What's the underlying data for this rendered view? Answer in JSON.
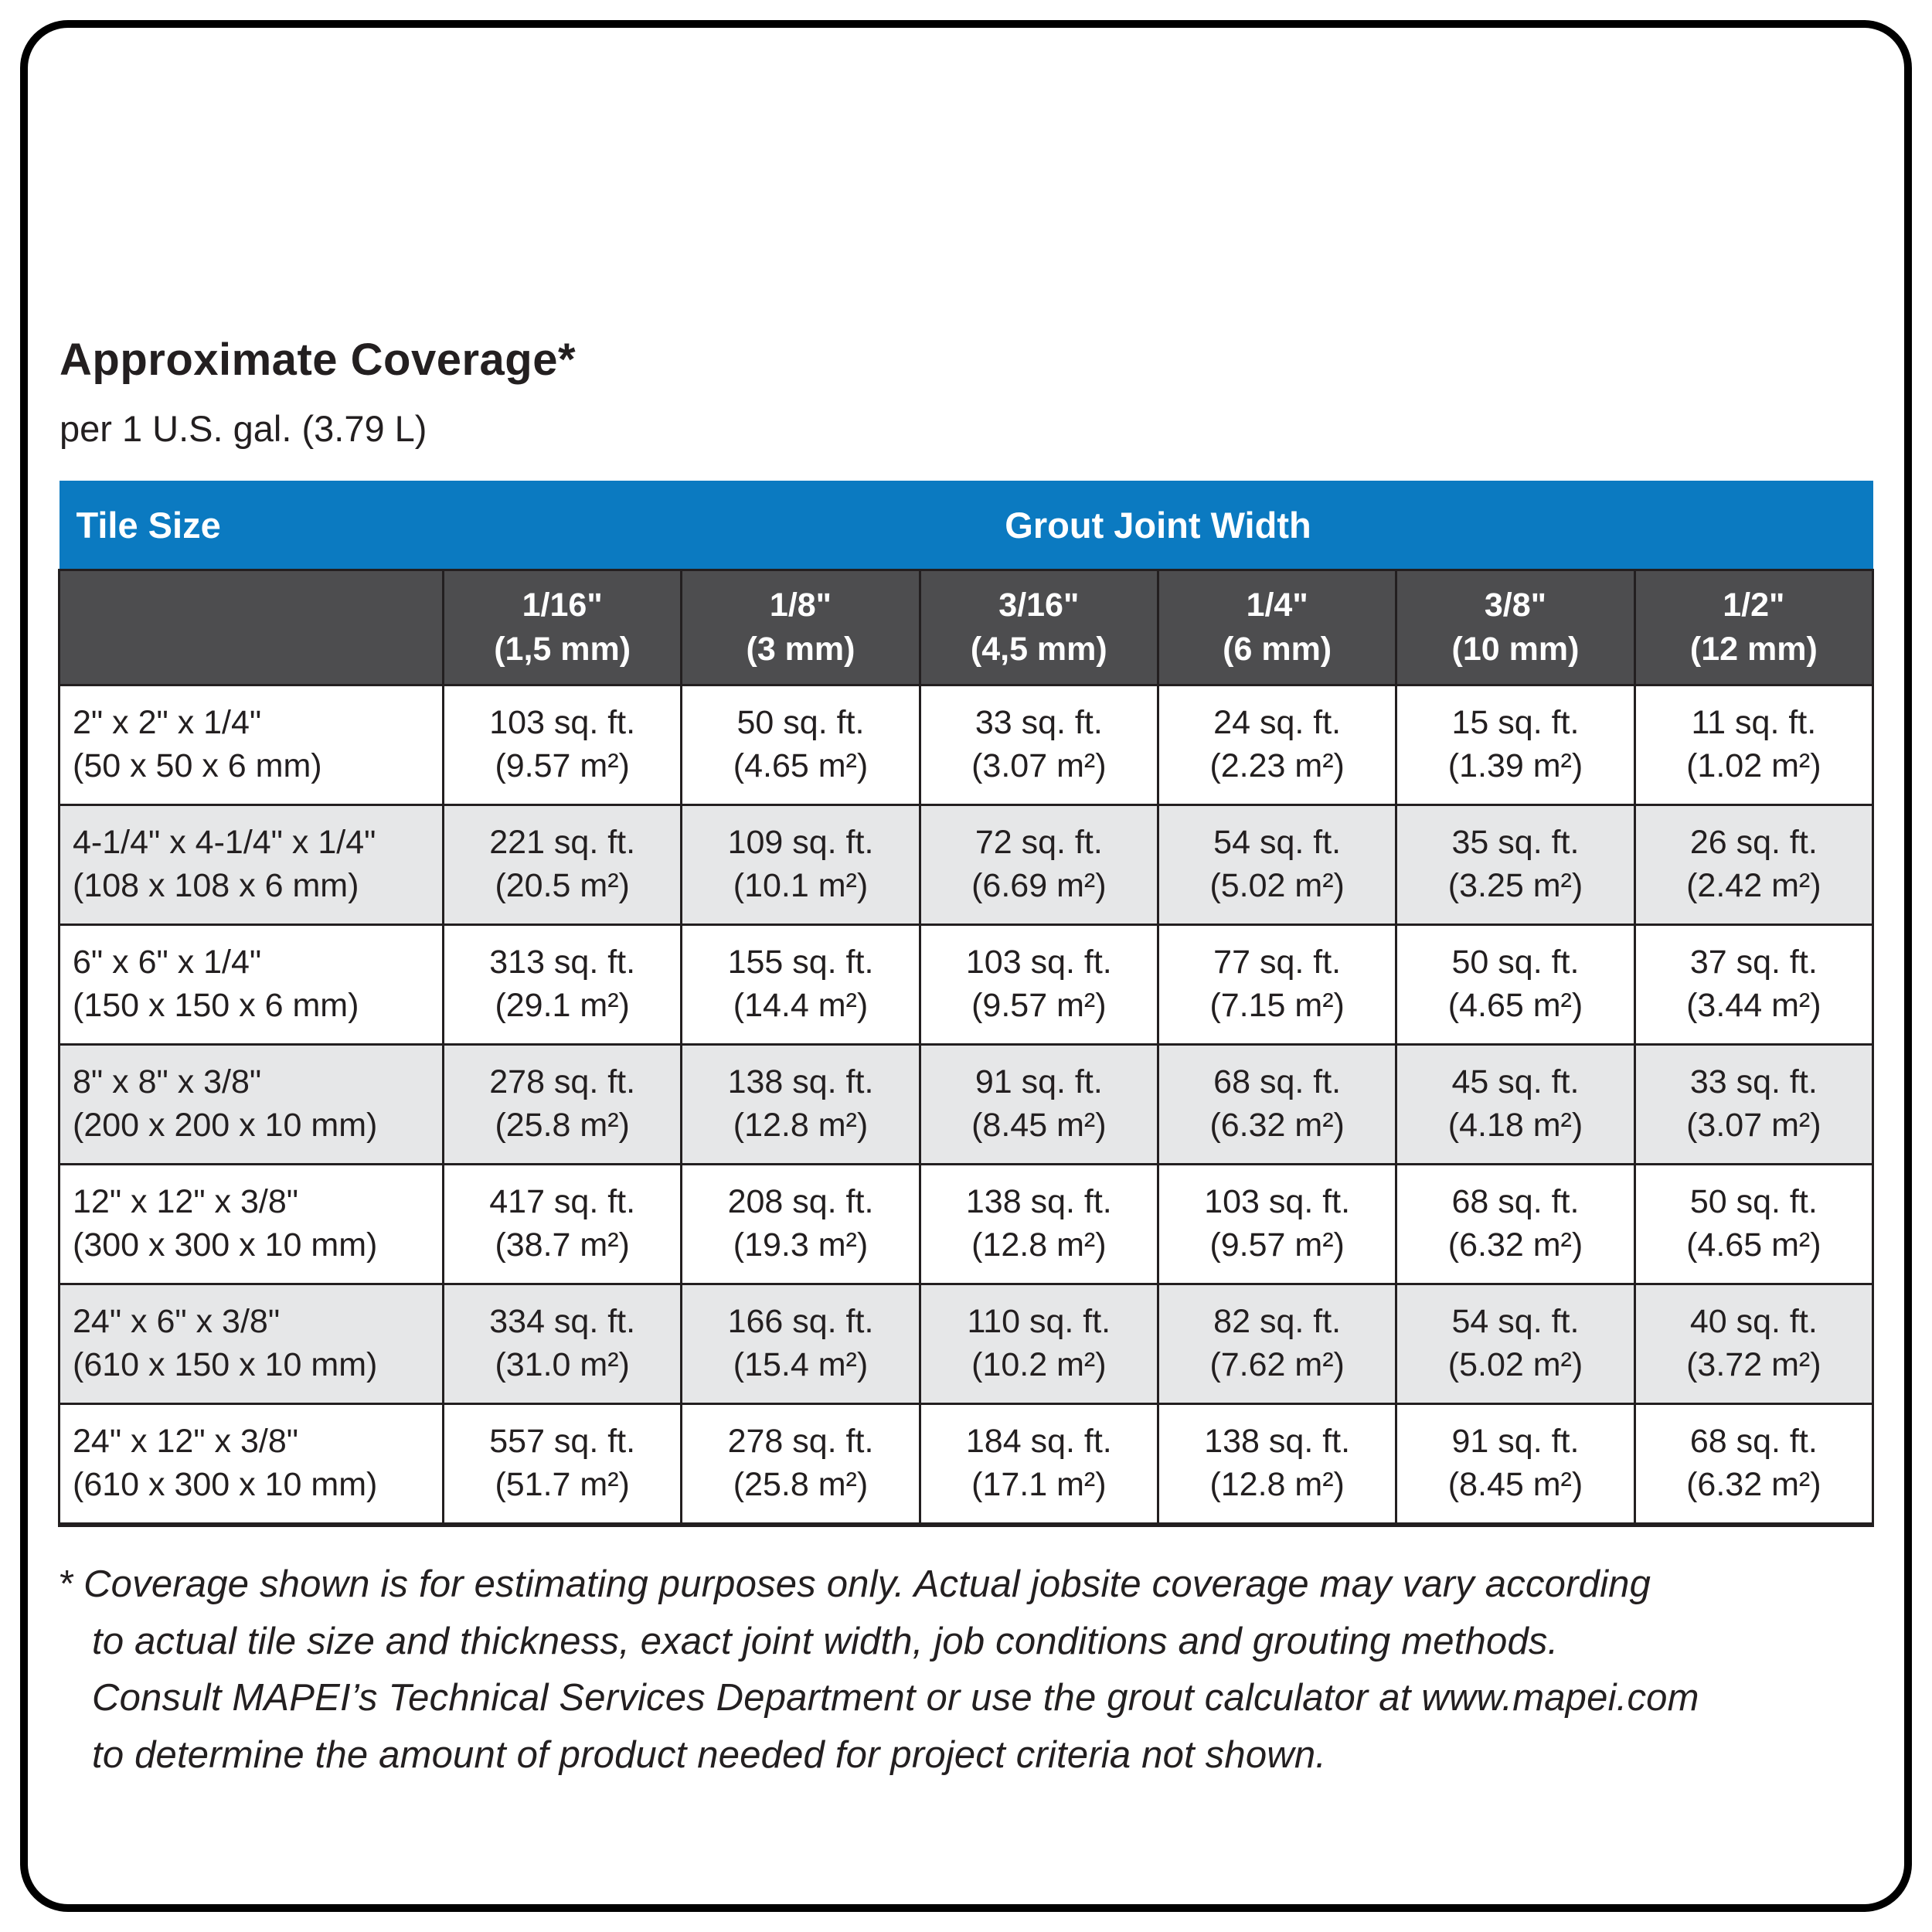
{
  "page": {
    "title": "Approximate Coverage*",
    "subtitle": "per 1 U.S. gal. (3.79 L)"
  },
  "colors": {
    "header_blue": "#0b7ac1",
    "subheader_gray": "#4d4d4f",
    "row_alt_gray": "#e6e7e8",
    "border_black": "#231f20"
  },
  "table": {
    "corner_label": "Tile Size",
    "group_header": "Grout Joint Width",
    "columns": [
      {
        "fraction": "1/16\"",
        "metric": "(1,5 mm)"
      },
      {
        "fraction": "1/8\"",
        "metric": "(3 mm)"
      },
      {
        "fraction": "3/16\"",
        "metric": "(4,5 mm)"
      },
      {
        "fraction": "1/4\"",
        "metric": "(6 mm)"
      },
      {
        "fraction": "3/8\"",
        "metric": "(10 mm)"
      },
      {
        "fraction": "1/2\"",
        "metric": "(12 mm)"
      }
    ],
    "rows": [
      {
        "tile_size": "2\" x 2\" x 1/4\"",
        "tile_size_metric": "(50 x 50 x 6 mm)",
        "cells": [
          {
            "imperial": "103 sq. ft.",
            "metric": "(9.57 m²)"
          },
          {
            "imperial": "50 sq. ft.",
            "metric": "(4.65 m²)"
          },
          {
            "imperial": "33 sq. ft.",
            "metric": "(3.07 m²)"
          },
          {
            "imperial": "24 sq. ft.",
            "metric": "(2.23 m²)"
          },
          {
            "imperial": "15 sq. ft.",
            "metric": "(1.39 m²)"
          },
          {
            "imperial": "11 sq. ft.",
            "metric": "(1.02 m²)"
          }
        ]
      },
      {
        "tile_size": "4-1/4\" x 4-1/4\" x 1/4\"",
        "tile_size_metric": "(108 x 108 x 6 mm)",
        "cells": [
          {
            "imperial": "221 sq. ft.",
            "metric": "(20.5 m²)"
          },
          {
            "imperial": "109 sq. ft.",
            "metric": "(10.1 m²)"
          },
          {
            "imperial": "72 sq. ft.",
            "metric": "(6.69 m²)"
          },
          {
            "imperial": "54 sq. ft.",
            "metric": "(5.02 m²)"
          },
          {
            "imperial": "35 sq. ft.",
            "metric": "(3.25 m²)"
          },
          {
            "imperial": "26 sq. ft.",
            "metric": "(2.42 m²)"
          }
        ]
      },
      {
        "tile_size": "6\" x 6\" x 1/4\"",
        "tile_size_metric": "(150 x 150 x 6 mm)",
        "cells": [
          {
            "imperial": "313 sq. ft.",
            "metric": "(29.1 m²)"
          },
          {
            "imperial": "155 sq. ft.",
            "metric": "(14.4 m²)"
          },
          {
            "imperial": "103 sq. ft.",
            "metric": "(9.57 m²)"
          },
          {
            "imperial": "77 sq. ft.",
            "metric": "(7.15 m²)"
          },
          {
            "imperial": "50 sq. ft.",
            "metric": "(4.65 m²)"
          },
          {
            "imperial": "37 sq. ft.",
            "metric": "(3.44 m²)"
          }
        ]
      },
      {
        "tile_size": "8\" x 8\" x 3/8\"",
        "tile_size_metric": "(200 x 200 x 10 mm)",
        "cells": [
          {
            "imperial": "278 sq. ft.",
            "metric": "(25.8 m²)"
          },
          {
            "imperial": "138 sq. ft.",
            "metric": "(12.8 m²)"
          },
          {
            "imperial": "91 sq. ft.",
            "metric": "(8.45 m²)"
          },
          {
            "imperial": "68 sq. ft.",
            "metric": "(6.32 m²)"
          },
          {
            "imperial": "45 sq. ft.",
            "metric": "(4.18 m²)"
          },
          {
            "imperial": "33 sq. ft.",
            "metric": "(3.07 m²)"
          }
        ]
      },
      {
        "tile_size": "12\" x 12\" x 3/8\"",
        "tile_size_metric": "(300 x 300 x 10 mm)",
        "cells": [
          {
            "imperial": "417 sq. ft.",
            "metric": "(38.7 m²)"
          },
          {
            "imperial": "208 sq. ft.",
            "metric": "(19.3 m²)"
          },
          {
            "imperial": "138 sq. ft.",
            "metric": "(12.8 m²)"
          },
          {
            "imperial": "103 sq. ft.",
            "metric": "(9.57 m²)"
          },
          {
            "imperial": "68 sq. ft.",
            "metric": "(6.32 m²)"
          },
          {
            "imperial": "50 sq. ft.",
            "metric": "(4.65 m²)"
          }
        ]
      },
      {
        "tile_size": "24\" x 6\" x 3/8\"",
        "tile_size_metric": "(610 x 150 x 10 mm)",
        "cells": [
          {
            "imperial": "334 sq. ft.",
            "metric": "(31.0 m²)"
          },
          {
            "imperial": "166 sq. ft.",
            "metric": "(15.4 m²)"
          },
          {
            "imperial": "110 sq. ft.",
            "metric": "(10.2 m²)"
          },
          {
            "imperial": "82 sq. ft.",
            "metric": "(7.62 m²)"
          },
          {
            "imperial": "54 sq. ft.",
            "metric": "(5.02 m²)"
          },
          {
            "imperial": "40 sq. ft.",
            "metric": "(3.72 m²)"
          }
        ]
      },
      {
        "tile_size": "24\" x 12\" x 3/8\"",
        "tile_size_metric": "(610 x 300 x 10 mm)",
        "cells": [
          {
            "imperial": "557 sq. ft.",
            "metric": "(51.7 m²)"
          },
          {
            "imperial": "278 sq. ft.",
            "metric": "(25.8 m²)"
          },
          {
            "imperial": "184 sq. ft.",
            "metric": "(17.1 m²)"
          },
          {
            "imperial": "138 sq. ft.",
            "metric": "(12.8 m²)"
          },
          {
            "imperial": "91 sq. ft.",
            "metric": "(8.45 m²)"
          },
          {
            "imperial": "68 sq. ft.",
            "metric": "(6.32 m²)"
          }
        ]
      }
    ]
  },
  "footnote": {
    "lines": [
      "* Coverage shown is for estimating purposes only. Actual jobsite coverage may vary according",
      "to actual tile size and thickness, exact joint width, job conditions and grouting methods.",
      "Consult MAPEI’s Technical Services Department or use the grout calculator at www.mapei.com",
      "to determine the amount of product needed for project criteria not shown."
    ]
  }
}
